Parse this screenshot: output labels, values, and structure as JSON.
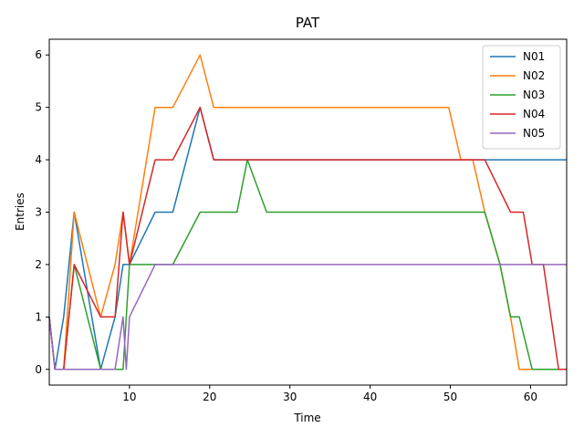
{
  "chart_data": {
    "type": "line",
    "title": "PAT",
    "xlabel": "Time",
    "ylabel": "Entries",
    "xlim": [
      0,
      64.5
    ],
    "ylim": [
      -0.3,
      6.3
    ],
    "xticks": [
      10,
      20,
      30,
      40,
      50,
      60
    ],
    "yticks": [
      0,
      1,
      2,
      3,
      4,
      5,
      6
    ],
    "grid": false,
    "legend_position": "top-right",
    "series": [
      {
        "name": "N01",
        "color": "#1f77b4",
        "points": [
          [
            0,
            1
          ],
          [
            0.7,
            0
          ],
          [
            1.8,
            1
          ],
          [
            3.1,
            3
          ],
          [
            6.4,
            0
          ],
          [
            8.2,
            1
          ],
          [
            9.2,
            2
          ],
          [
            10,
            2
          ],
          [
            13.2,
            3
          ],
          [
            15.4,
            3
          ],
          [
            18.8,
            5
          ],
          [
            20.5,
            4
          ],
          [
            54.3,
            4
          ],
          [
            64.5,
            4
          ]
        ]
      },
      {
        "name": "N02",
        "color": "#ff7f0e",
        "points": [
          [
            0,
            1
          ],
          [
            0.7,
            0
          ],
          [
            1.8,
            0
          ],
          [
            3.1,
            3
          ],
          [
            6.4,
            1
          ],
          [
            8.2,
            2
          ],
          [
            9.2,
            3
          ],
          [
            10,
            2
          ],
          [
            13.2,
            5
          ],
          [
            15.4,
            5
          ],
          [
            18.8,
            6
          ],
          [
            20.5,
            5
          ],
          [
            49.8,
            5
          ],
          [
            51.3,
            4
          ],
          [
            52.8,
            4
          ],
          [
            54.3,
            3
          ],
          [
            56.2,
            2
          ],
          [
            57.5,
            1
          ],
          [
            58.6,
            0
          ],
          [
            60.2,
            0
          ],
          [
            64.5,
            0
          ]
        ]
      },
      {
        "name": "N03",
        "color": "#2ca02c",
        "points": [
          [
            0,
            1
          ],
          [
            0.7,
            0
          ],
          [
            1.8,
            0
          ],
          [
            3.1,
            2
          ],
          [
            6.4,
            0
          ],
          [
            8.2,
            0
          ],
          [
            9.2,
            0
          ],
          [
            10,
            2
          ],
          [
            13.2,
            2
          ],
          [
            15.4,
            2
          ],
          [
            18.8,
            3
          ],
          [
            23.4,
            3
          ],
          [
            24.7,
            4
          ],
          [
            27.1,
            3
          ],
          [
            54.3,
            3
          ],
          [
            56.2,
            2
          ],
          [
            57.5,
            1
          ],
          [
            58.6,
            1
          ],
          [
            60.2,
            0
          ],
          [
            64.5,
            0
          ]
        ]
      },
      {
        "name": "N04",
        "color": "#d62728",
        "points": [
          [
            0,
            1
          ],
          [
            0.7,
            0
          ],
          [
            1.8,
            0
          ],
          [
            3.1,
            2
          ],
          [
            6.4,
            1
          ],
          [
            8.2,
            1
          ],
          [
            9.2,
            3
          ],
          [
            10,
            2
          ],
          [
            13.2,
            4
          ],
          [
            15.4,
            4
          ],
          [
            18.8,
            5
          ],
          [
            20.5,
            4
          ],
          [
            54.3,
            4
          ],
          [
            57.5,
            3
          ],
          [
            59.1,
            3
          ],
          [
            60.2,
            2
          ],
          [
            61.6,
            2
          ],
          [
            63.5,
            0
          ],
          [
            64.5,
            0
          ]
        ]
      },
      {
        "name": "N05",
        "color": "#9467bd",
        "points": [
          [
            0,
            1
          ],
          [
            0.7,
            0
          ],
          [
            1.8,
            0
          ],
          [
            3.1,
            0
          ],
          [
            6.4,
            0
          ],
          [
            8.2,
            0
          ],
          [
            9.2,
            1
          ],
          [
            9.6,
            0
          ],
          [
            10,
            1
          ],
          [
            13.2,
            2
          ],
          [
            15.4,
            2
          ],
          [
            64.5,
            2
          ]
        ]
      }
    ]
  }
}
